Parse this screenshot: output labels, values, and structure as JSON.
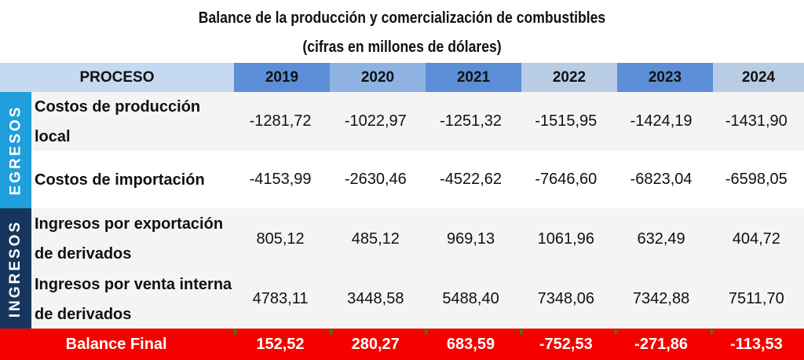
{
  "title": "Balance de la producción y comercialización de combustibles",
  "subtitle": "(cifras en millones de dólares)",
  "header": {
    "process": "PROCESO",
    "years": [
      "2019",
      "2020",
      "2021",
      "2022",
      "2023",
      "2024"
    ]
  },
  "groups": {
    "egresos": "EGRESOS",
    "ingresos": "INGRESOS"
  },
  "rows": [
    {
      "label": "Costos de producción local",
      "values": [
        "-1281,72",
        "-1022,97",
        "-1251,32",
        "-1515,95",
        "-1424,19",
        "-1431,90"
      ]
    },
    {
      "label": "Costos de importación",
      "values": [
        "-4153,99",
        "-2630,46",
        "-4522,62",
        "-7646,60",
        "-6823,04",
        "-6598,05"
      ]
    },
    {
      "label": "Ingresos por exportación de derivados",
      "values": [
        "805,12",
        "485,12",
        "969,13",
        "1061,96",
        "632,49",
        "404,72"
      ]
    },
    {
      "label": "Ingresos por venta interna de derivados",
      "values": [
        "4783,11",
        "3448,58",
        "5488,40",
        "7348,06",
        "7342,88",
        "7511,70"
      ]
    }
  ],
  "balance": {
    "label": "Balance Final",
    "values": [
      "152,52",
      "280,27",
      "683,59",
      "-752,53",
      "-271,86",
      "-113,53"
    ]
  },
  "colors": {
    "egresos": "#1f9fdc",
    "ingresos": "#17365d",
    "balance": "#f70000",
    "header_dark": "#5b8ed6",
    "header_light": "#8eb3e2",
    "process": "#c5d9f1"
  }
}
